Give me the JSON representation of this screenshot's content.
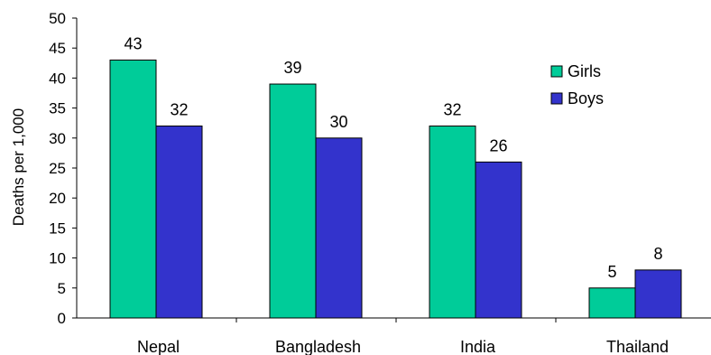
{
  "chart_data": {
    "type": "bar",
    "title": "",
    "xlabel": "",
    "ylabel": "Deaths per 1,000",
    "categories": [
      "Nepal",
      "Bangladesh",
      "India",
      "Thailand"
    ],
    "series": [
      {
        "name": "Girls",
        "color": "#00CC99",
        "values": [
          43,
          39,
          32,
          5
        ],
        "labels": [
          "43",
          "39",
          "32",
          "5"
        ]
      },
      {
        "name": "Boys",
        "color": "#3333CC",
        "values": [
          32,
          30,
          26,
          8
        ],
        "labels": [
          "32",
          "30",
          "26",
          "8"
        ]
      }
    ],
    "ylim": [
      0,
      50
    ],
    "yticks": [
      0,
      5,
      10,
      15,
      20,
      25,
      30,
      35,
      40,
      45,
      50
    ],
    "ytick_labels": [
      "0",
      "5",
      "10",
      "15",
      "20",
      "25",
      "30",
      "35",
      "40",
      "45",
      "50"
    ],
    "grid": false,
    "legend_position": "right"
  }
}
